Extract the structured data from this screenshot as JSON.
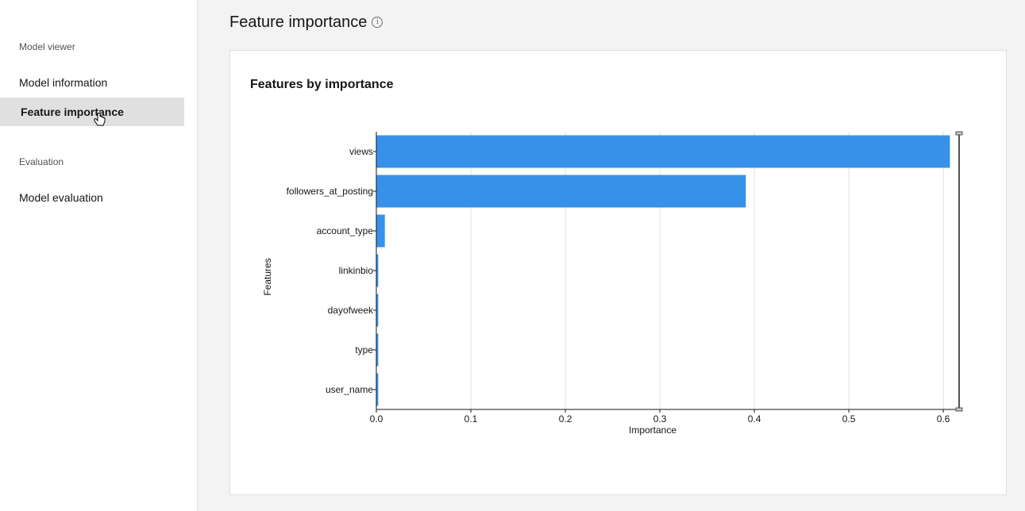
{
  "sidebar": {
    "section1": "Model viewer",
    "items1": [
      {
        "label": "Model information"
      },
      {
        "label": "Feature importance"
      }
    ],
    "section2": "Evaluation",
    "items2": [
      {
        "label": "Model evaluation"
      }
    ]
  },
  "page": {
    "title": "Feature importance",
    "info_icon": "info-icon"
  },
  "card": {
    "title": "Features by importance"
  },
  "colors": {
    "bar": "#3791e8",
    "active_nav": "#e0e0e0"
  },
  "chart_data": {
    "type": "bar",
    "orientation": "horizontal",
    "categories": [
      "views",
      "followers_at_posting",
      "account_type",
      "linkinbio",
      "dayofweek",
      "type",
      "user_name"
    ],
    "values": [
      0.607,
      0.391,
      0.009,
      0.002,
      0.002,
      0.002,
      0.002
    ],
    "xlabel": "Importance",
    "ylabel": "Features",
    "xlim": [
      0,
      0.61
    ],
    "xticks": [
      "0.0",
      "0.1",
      "0.2",
      "0.3",
      "0.4",
      "0.5",
      "0.6"
    ],
    "grid": true
  }
}
